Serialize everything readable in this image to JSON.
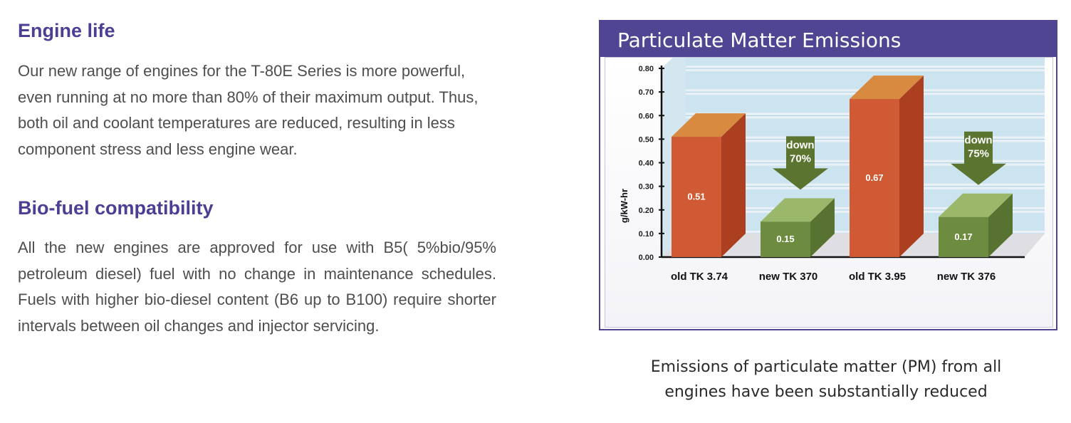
{
  "engine_life": {
    "title": "Engine life",
    "text": "Our new range of engines for the T-80E Series is more powerful, even running at no more than 80% of their maximum output. Thus, both oil and coolant temperatures are reduced, resulting in less component stress and less engine wear."
  },
  "biofuel": {
    "title": "Bio-fuel compatibility",
    "text": "All the new engines are approved for use with B5( 5%bio/95% petroleum diesel) fuel with no change in maintenance schedules. Fuels with higher bio-diesel content (B6 up to B100) require shorter intervals between oil changes and injector servicing."
  },
  "chart_panel": {
    "caption_line1": "Emissions of particulate matter (PM) from all",
    "caption_line2": "engines have been substantially reduced"
  },
  "chart_data": {
    "type": "bar",
    "title": "Particulate Matter Emissions",
    "xlabel": "",
    "ylabel": "g/kW-hr",
    "ylim": [
      0,
      0.8
    ],
    "yticks": [
      "0.00",
      "0.10",
      "0.20",
      "0.30",
      "0.40",
      "0.50",
      "0.60",
      "0.70",
      "0.80"
    ],
    "grid": true,
    "categories": [
      "old TK 3.74",
      "new TK 370",
      "old TK 3.95",
      "new TK 376"
    ],
    "values": [
      0.51,
      0.15,
      0.67,
      0.17
    ],
    "value_labels": [
      "0.51",
      "0.15",
      "0.67",
      "0.17"
    ],
    "bar_groups": [
      "old",
      "new",
      "old",
      "new"
    ],
    "colors": {
      "old_front": "#cf5a33",
      "old_side": "#ab3f1f",
      "old_top": "#d98a41",
      "new_front": "#6e8c40",
      "new_side": "#587331",
      "new_top": "#9bb86a",
      "arrow": "#5b7530",
      "grid_band": "#c5e2ee"
    },
    "annotations": [
      {
        "bar": 1,
        "line1": "down",
        "line2": "70%"
      },
      {
        "bar": 3,
        "line1": "down",
        "line2": "75%"
      }
    ]
  }
}
